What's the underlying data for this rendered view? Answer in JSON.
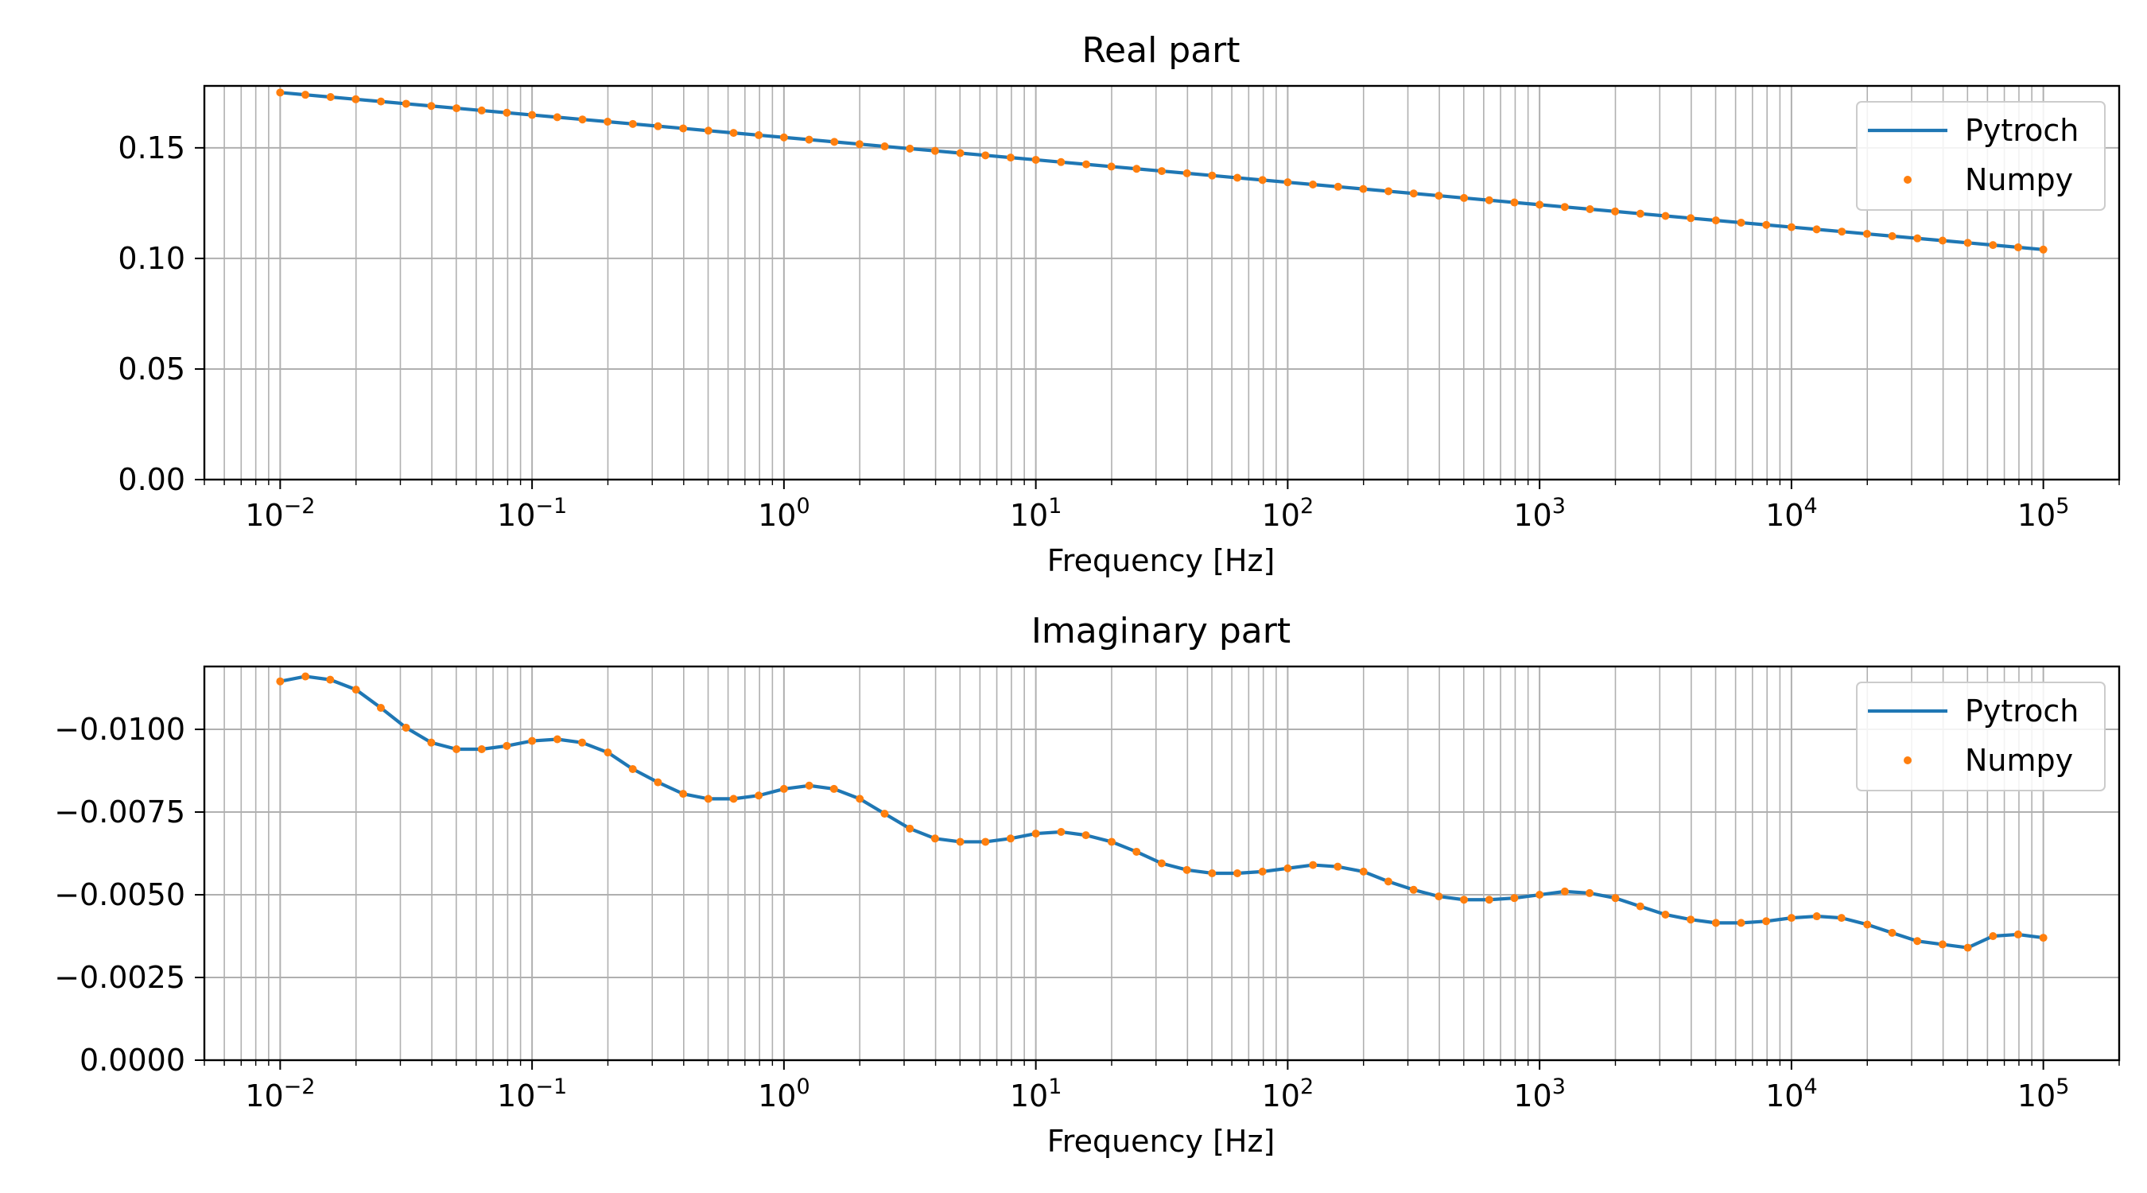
{
  "colors": {
    "pytorch": "#1f77b4",
    "numpy": "#ff7f0e",
    "grid": "#b0b0b0",
    "axes": "#000000",
    "legend_border": "#cccccc"
  },
  "chart_data": [
    {
      "type": "line",
      "title": "Real part",
      "xlabel": "Frequency [Hz]",
      "ylabel": "",
      "xscale": "log",
      "xlim": [
        0.005,
        200000
      ],
      "ylim": [
        0.0,
        0.178
      ],
      "yticks": [
        0.0,
        0.05,
        0.1,
        0.15
      ],
      "ytick_labels": [
        "0.00",
        "0.05",
        "0.10",
        "0.15"
      ],
      "xtick_labels": [
        {
          "base": "10",
          "exp": "−2"
        },
        {
          "base": "10",
          "exp": "−1"
        },
        {
          "base": "10",
          "exp": "0"
        },
        {
          "base": "10",
          "exp": "1"
        },
        {
          "base": "10",
          "exp": "2"
        },
        {
          "base": "10",
          "exp": "3"
        },
        {
          "base": "10",
          "exp": "4"
        },
        {
          "base": "10",
          "exp": "5"
        }
      ],
      "grid": true,
      "legend_position": "upper right",
      "series": [
        {
          "name": "Pytroch",
          "style": "line",
          "x": [
            0.01,
            100000
          ],
          "y": [
            0.175,
            0.104
          ]
        },
        {
          "name": "Numpy",
          "style": "markers",
          "x": [
            0.01,
            100000
          ],
          "y": [
            0.175,
            0.104
          ]
        }
      ],
      "model": {
        "kind": "linear_in_log10x",
        "x_start": 0.01,
        "x_end": 100000,
        "y_start": 0.175,
        "y_end": 0.104,
        "points": 71
      }
    },
    {
      "type": "line",
      "title": "Imaginary part",
      "xlabel": "Frequency [Hz]",
      "ylabel": "",
      "xscale": "log",
      "xlim": [
        0.005,
        200000
      ],
      "ylim": [
        0.0,
        -0.0119
      ],
      "yticks": [
        0.0,
        -0.0025,
        -0.005,
        -0.0075,
        -0.01
      ],
      "ytick_labels": [
        "0.0000",
        "−0.0025",
        "−0.0050",
        "−0.0075",
        "−0.0100"
      ],
      "xtick_labels": [
        {
          "base": "10",
          "exp": "−2"
        },
        {
          "base": "10",
          "exp": "−1"
        },
        {
          "base": "10",
          "exp": "0"
        },
        {
          "base": "10",
          "exp": "1"
        },
        {
          "base": "10",
          "exp": "2"
        },
        {
          "base": "10",
          "exp": "3"
        },
        {
          "base": "10",
          "exp": "4"
        },
        {
          "base": "10",
          "exp": "5"
        }
      ],
      "grid": true,
      "legend_position": "upper right",
      "series": [
        {
          "name": "Pytroch",
          "style": "line",
          "x": [
            0.01,
            0.0126,
            0.0158,
            0.02,
            0.0251,
            0.0316,
            0.0398,
            0.0501,
            0.0631,
            0.0794,
            0.1,
            0.126,
            0.158,
            0.2,
            0.251,
            0.316,
            0.398,
            0.501,
            0.631,
            0.794,
            1,
            1.26,
            1.58,
            2,
            2.51,
            3.16,
            3.98,
            5.01,
            6.31,
            7.94,
            10,
            12.6,
            15.8,
            20,
            25.1,
            31.6,
            39.8,
            50.1,
            63.1,
            79.4,
            100,
            126,
            158,
            200,
            251,
            316,
            398,
            501,
            631,
            794,
            1000,
            1260,
            1580,
            2000,
            2510,
            3160,
            3980,
            5010,
            6310,
            7940,
            10000,
            12600,
            15800,
            20000,
            25100,
            31600,
            39800,
            50100,
            63100,
            79400,
            100000
          ],
          "y": [
            -0.01145,
            -0.0116,
            -0.0115,
            -0.0112,
            -0.01065,
            -0.01005,
            -0.0096,
            -0.0094,
            -0.0094,
            -0.0095,
            -0.00965,
            -0.0097,
            -0.0096,
            -0.0093,
            -0.0088,
            -0.0084,
            -0.00805,
            -0.0079,
            -0.0079,
            -0.008,
            -0.0082,
            -0.0083,
            -0.0082,
            -0.0079,
            -0.00745,
            -0.007,
            -0.0067,
            -0.0066,
            -0.0066,
            -0.0067,
            -0.00685,
            -0.0069,
            -0.0068,
            -0.0066,
            -0.0063,
            -0.00595,
            -0.00575,
            -0.00565,
            -0.00565,
            -0.0057,
            -0.0058,
            -0.0059,
            -0.00585,
            -0.0057,
            -0.0054,
            -0.00515,
            -0.00495,
            -0.00485,
            -0.00485,
            -0.0049,
            -0.005,
            -0.0051,
            -0.00505,
            -0.0049,
            -0.00465,
            -0.0044,
            -0.00425,
            -0.00415,
            -0.00415,
            -0.0042,
            -0.0043,
            -0.00435,
            -0.0043,
            -0.0041,
            -0.00385,
            -0.0036,
            -0.0035,
            -0.0034,
            -0.00375,
            -0.0038,
            -0.0037
          ]
        },
        {
          "name": "Numpy",
          "style": "markers",
          "x": [
            0.01,
            0.0126,
            0.0158,
            0.02,
            0.0251,
            0.0316,
            0.0398,
            0.0501,
            0.0631,
            0.0794,
            0.1,
            0.126,
            0.158,
            0.2,
            0.251,
            0.316,
            0.398,
            0.501,
            0.631,
            0.794,
            1,
            1.26,
            1.58,
            2,
            2.51,
            3.16,
            3.98,
            5.01,
            6.31,
            7.94,
            10,
            12.6,
            15.8,
            20,
            25.1,
            31.6,
            39.8,
            50.1,
            63.1,
            79.4,
            100,
            126,
            158,
            200,
            251,
            316,
            398,
            501,
            631,
            794,
            1000,
            1260,
            1580,
            2000,
            2510,
            3160,
            3980,
            5010,
            6310,
            7940,
            10000,
            12600,
            15800,
            20000,
            25100,
            31600,
            39800,
            50100,
            63100,
            79400,
            100000
          ],
          "y": [
            -0.01145,
            -0.0116,
            -0.0115,
            -0.0112,
            -0.01065,
            -0.01005,
            -0.0096,
            -0.0094,
            -0.0094,
            -0.0095,
            -0.00965,
            -0.0097,
            -0.0096,
            -0.0093,
            -0.0088,
            -0.0084,
            -0.00805,
            -0.0079,
            -0.0079,
            -0.008,
            -0.0082,
            -0.0083,
            -0.0082,
            -0.0079,
            -0.00745,
            -0.007,
            -0.0067,
            -0.0066,
            -0.0066,
            -0.0067,
            -0.00685,
            -0.0069,
            -0.0068,
            -0.0066,
            -0.0063,
            -0.00595,
            -0.00575,
            -0.00565,
            -0.00565,
            -0.0057,
            -0.0058,
            -0.0059,
            -0.00585,
            -0.0057,
            -0.0054,
            -0.00515,
            -0.00495,
            -0.00485,
            -0.00485,
            -0.0049,
            -0.005,
            -0.0051,
            -0.00505,
            -0.0049,
            -0.00465,
            -0.0044,
            -0.00425,
            -0.00415,
            -0.00415,
            -0.0042,
            -0.0043,
            -0.00435,
            -0.0043,
            -0.0041,
            -0.00385,
            -0.0036,
            -0.0035,
            -0.0034,
            -0.00375,
            -0.0038,
            -0.0037
          ]
        }
      ]
    }
  ]
}
